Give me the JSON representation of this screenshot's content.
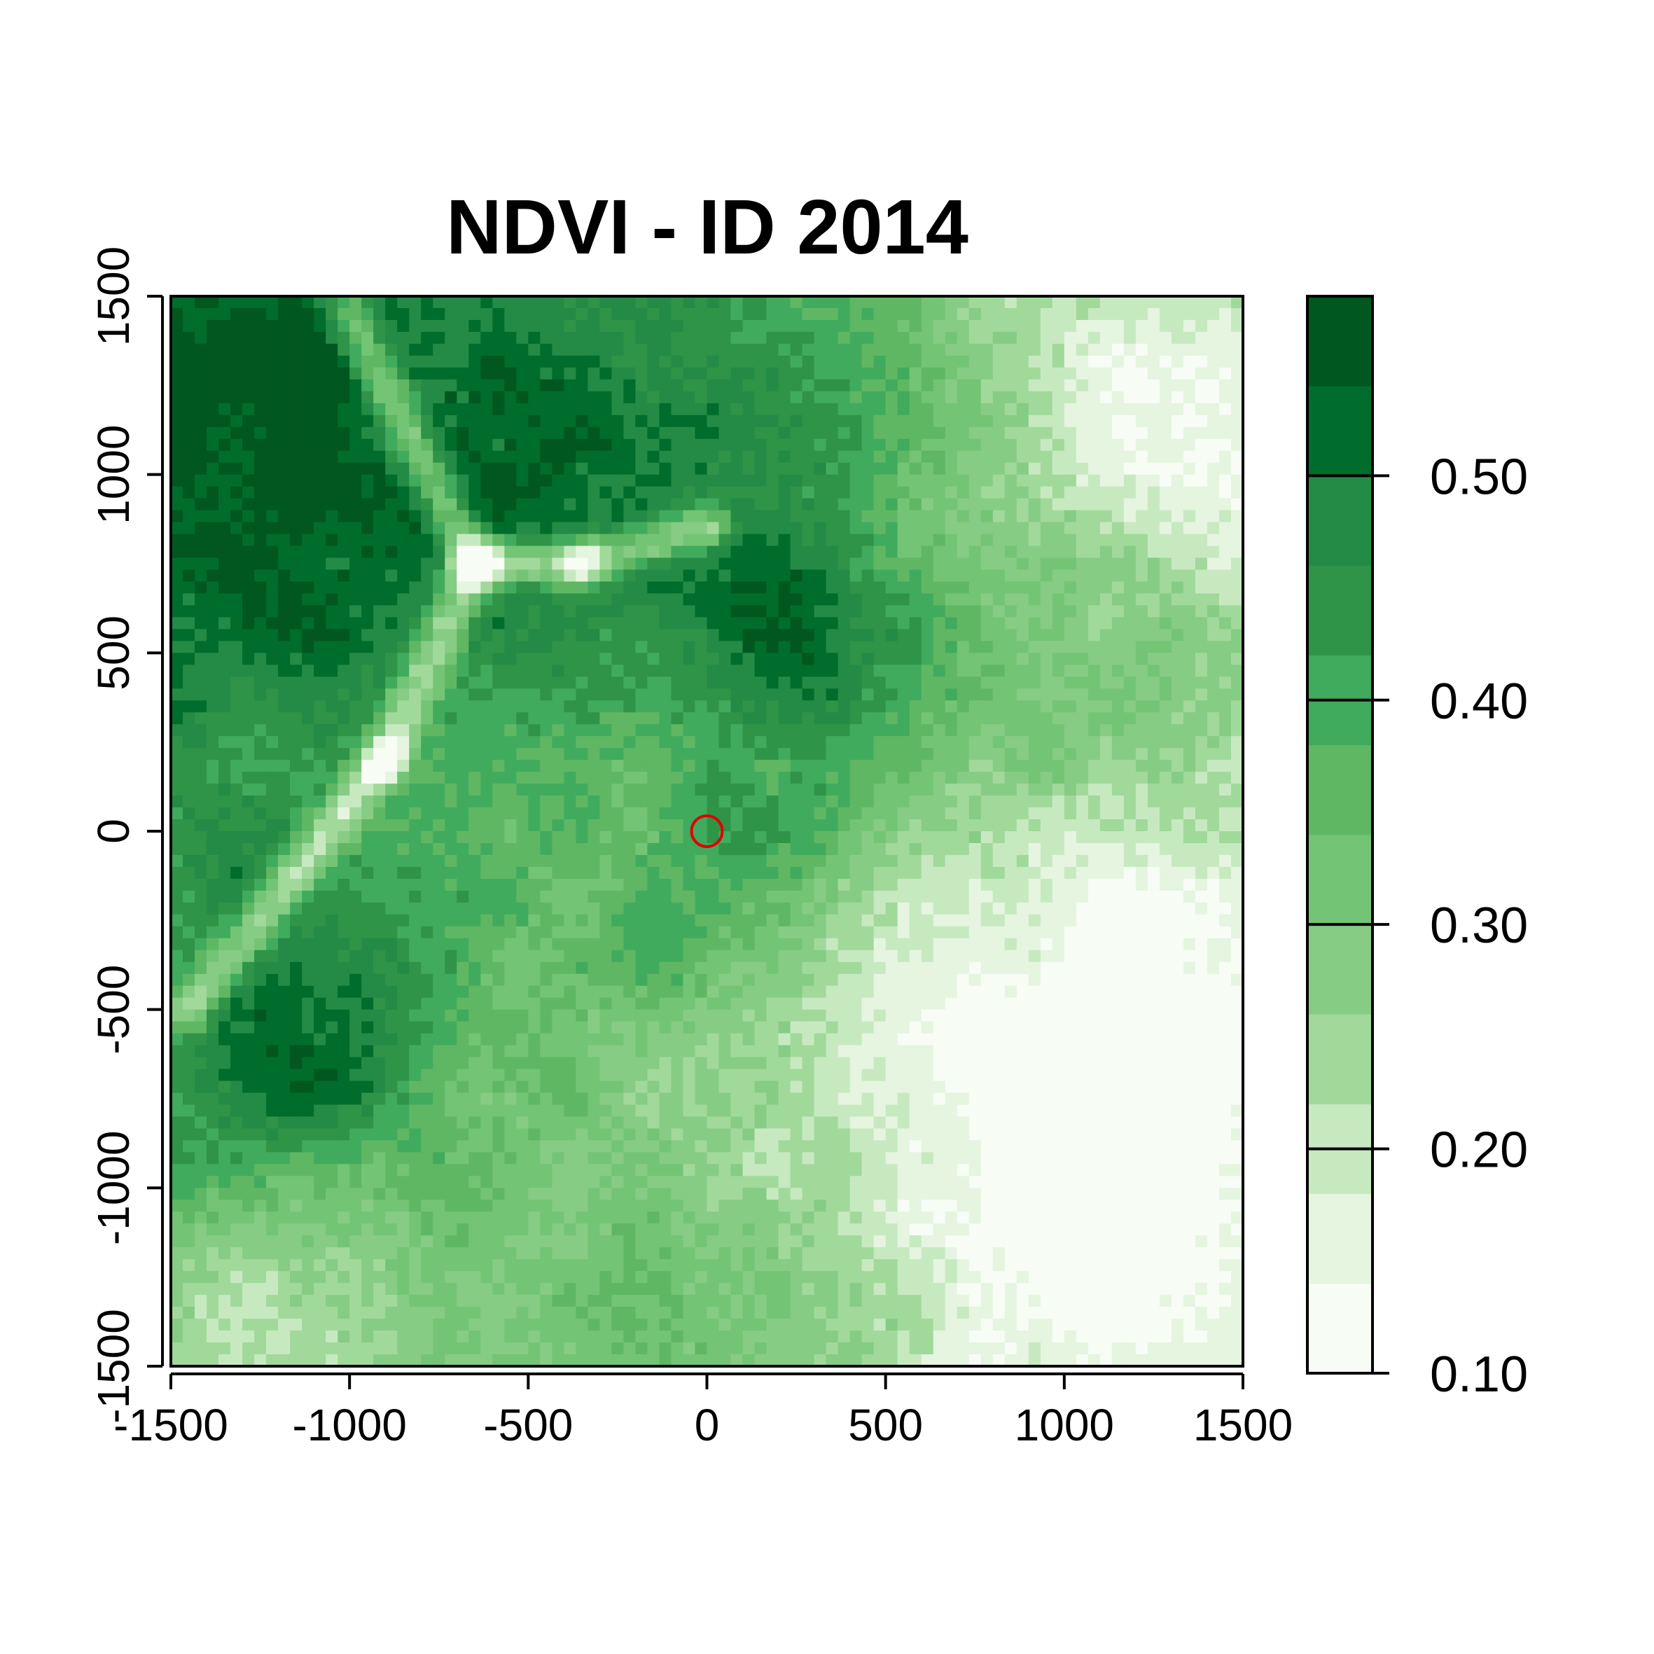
{
  "chart_data": {
    "type": "heatmap",
    "title": "NDVI - ID 2014",
    "xlabel": "",
    "ylabel": "",
    "xlim": [
      -1500,
      1500
    ],
    "ylim": [
      -1500,
      1500
    ],
    "x_ticks": [
      -1500,
      -1000,
      -500,
      0,
      500,
      1000,
      1500
    ],
    "y_ticks": [
      -1500,
      -1000,
      -500,
      0,
      500,
      1000,
      1500
    ],
    "x_tick_labels": [
      "-1500",
      "-1000",
      "-500",
      "0",
      "500",
      "1000",
      "1500"
    ],
    "y_tick_labels": [
      "-1500",
      "-1000",
      "-500",
      "0",
      "500",
      "1000",
      "1500"
    ],
    "marker": {
      "shape": "open-circle",
      "x": 0,
      "y": 0,
      "color": "#e00000"
    },
    "legend": {
      "placement": "right",
      "range": [
        0.1,
        0.58
      ],
      "breaks": [
        0.1,
        0.14,
        0.18,
        0.22,
        0.26,
        0.3,
        0.34,
        0.38,
        0.42,
        0.46,
        0.5,
        0.54,
        0.58
      ],
      "colors": [
        "#f7fcf5",
        "#e5f5e0",
        "#c7e9c0",
        "#a1d99b",
        "#86cc85",
        "#74c476",
        "#5fb764",
        "#41ab5d",
        "#2f9447",
        "#238b45",
        "#006d2c",
        "#00571f",
        "#00441b"
      ],
      "ticks": [
        0.1,
        0.2,
        0.3,
        0.4,
        0.5
      ],
      "tick_labels": [
        "0.10",
        "0.20",
        "0.30",
        "0.40",
        "0.50"
      ]
    },
    "field_description_features": {
      "grid_size": [
        90,
        90
      ],
      "dark_blobs": [
        {
          "x": -1250,
          "y": 1000,
          "r": 600,
          "v": 0.15
        },
        {
          "x": -1200,
          "y": -600,
          "r": 250,
          "v": 0.18
        },
        {
          "x": -200,
          "y": 1100,
          "r": 400,
          "v": 0.1
        },
        {
          "x": 250,
          "y": 550,
          "r": 200,
          "v": 0.1
        },
        {
          "x": 400,
          "y": 800,
          "r": 450,
          "v": 0.08
        },
        {
          "x": -100,
          "y": -350,
          "r": 120,
          "v": 0.12
        },
        {
          "x": 200,
          "y": 0,
          "r": 220,
          "v": 0.1
        },
        {
          "x": 1000,
          "y": 500,
          "r": 300,
          "v": 0.08
        }
      ],
      "light_blobs": [
        {
          "x": 1250,
          "y": 1100,
          "r": 500,
          "v": -0.18
        },
        {
          "x": 1300,
          "y": -500,
          "r": 400,
          "v": -0.15
        },
        {
          "x": 1100,
          "y": -1200,
          "r": 400,
          "v": -0.14
        },
        {
          "x": -1200,
          "y": -1350,
          "r": 300,
          "v": -0.15
        },
        {
          "x": 450,
          "y": -500,
          "r": 500,
          "v": -0.1
        }
      ],
      "light_streaks": [
        [
          -1000,
          1450,
          -650,
          750
        ],
        [
          -650,
          750,
          -350,
          750
        ],
        [
          -350,
          750,
          0,
          850
        ],
        [
          -650,
          750,
          -900,
          200
        ],
        [
          -900,
          200,
          -1450,
          -500
        ],
        [
          800,
          -650,
          900,
          -900
        ]
      ]
    }
  }
}
